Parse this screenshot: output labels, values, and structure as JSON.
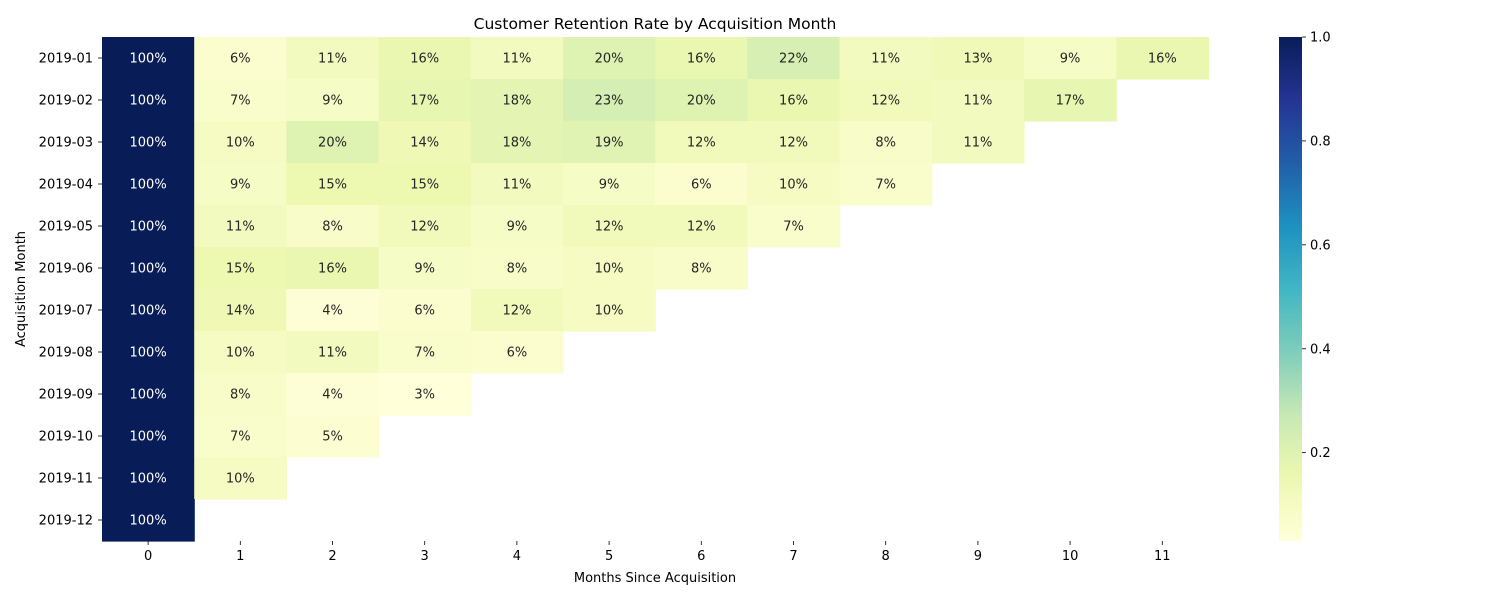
{
  "chart_data": {
    "type": "heatmap",
    "title": "Customer Retention Rate by Acquisition Month",
    "xlabel": "Months Since Acquisition",
    "ylabel": "Acquisition Month",
    "x_categories": [
      "0",
      "1",
      "2",
      "3",
      "4",
      "5",
      "6",
      "7",
      "8",
      "9",
      "10",
      "11"
    ],
    "y_categories": [
      "2019-01",
      "2019-02",
      "2019-03",
      "2019-04",
      "2019-05",
      "2019-06",
      "2019-07",
      "2019-08",
      "2019-09",
      "2019-10",
      "2019-11",
      "2019-12"
    ],
    "values": [
      [
        1.0,
        0.06,
        0.11,
        0.16,
        0.11,
        0.2,
        0.16,
        0.22,
        0.11,
        0.13,
        0.09,
        0.16
      ],
      [
        1.0,
        0.07,
        0.09,
        0.17,
        0.18,
        0.23,
        0.2,
        0.16,
        0.12,
        0.11,
        0.17,
        null
      ],
      [
        1.0,
        0.1,
        0.2,
        0.14,
        0.18,
        0.19,
        0.12,
        0.12,
        0.08,
        0.11,
        null,
        null
      ],
      [
        1.0,
        0.09,
        0.15,
        0.15,
        0.11,
        0.09,
        0.06,
        0.1,
        0.07,
        null,
        null,
        null
      ],
      [
        1.0,
        0.11,
        0.08,
        0.12,
        0.09,
        0.12,
        0.12,
        0.07,
        null,
        null,
        null,
        null
      ],
      [
        1.0,
        0.15,
        0.16,
        0.09,
        0.08,
        0.1,
        0.08,
        null,
        null,
        null,
        null,
        null
      ],
      [
        1.0,
        0.14,
        0.04,
        0.06,
        0.12,
        0.1,
        null,
        null,
        null,
        null,
        null,
        null
      ],
      [
        1.0,
        0.1,
        0.11,
        0.07,
        0.06,
        null,
        null,
        null,
        null,
        null,
        null,
        null
      ],
      [
        1.0,
        0.08,
        0.04,
        0.03,
        null,
        null,
        null,
        null,
        null,
        null,
        null,
        null
      ],
      [
        1.0,
        0.07,
        0.05,
        null,
        null,
        null,
        null,
        null,
        null,
        null,
        null,
        null
      ],
      [
        1.0,
        0.1,
        null,
        null,
        null,
        null,
        null,
        null,
        null,
        null,
        null,
        null
      ],
      [
        1.0,
        null,
        null,
        null,
        null,
        null,
        null,
        null,
        null,
        null,
        null,
        null
      ]
    ],
    "value_format": "percent",
    "colormap": "YlGnBu",
    "colorbar": {
      "range": [
        0.03,
        1.0
      ],
      "ticks": [
        "0.2",
        "0.4",
        "0.6",
        "0.8",
        "1.0"
      ]
    },
    "grid": false
  }
}
